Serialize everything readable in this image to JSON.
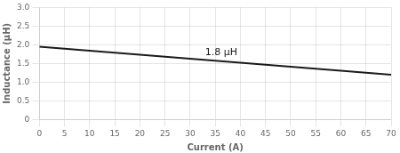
{
  "chart_data": {
    "type": "line",
    "x": [
      0,
      70
    ],
    "values": [
      1.95,
      1.2
    ],
    "color": "#1a1a1a",
    "xlabel": "Current (A)",
    "ylabel": "Inductance (μH)",
    "xlim": [
      0,
      70
    ],
    "ylim": [
      0,
      3.0
    ],
    "xticks": [
      0,
      5,
      10,
      15,
      20,
      25,
      30,
      35,
      40,
      45,
      50,
      55,
      60,
      65,
      70
    ],
    "yticks": [
      0,
      0.5,
      {
        "value": 1.0,
        "label": "1.0"
      },
      1.5,
      {
        "value": 2.0,
        "label": "2.0"
      },
      2.5,
      {
        "value": 3.0,
        "label": "3.0"
      }
    ],
    "grid": true,
    "annotations": [
      {
        "text": "1.8 μH",
        "x": 33,
        "y": 1.72
      }
    ]
  }
}
